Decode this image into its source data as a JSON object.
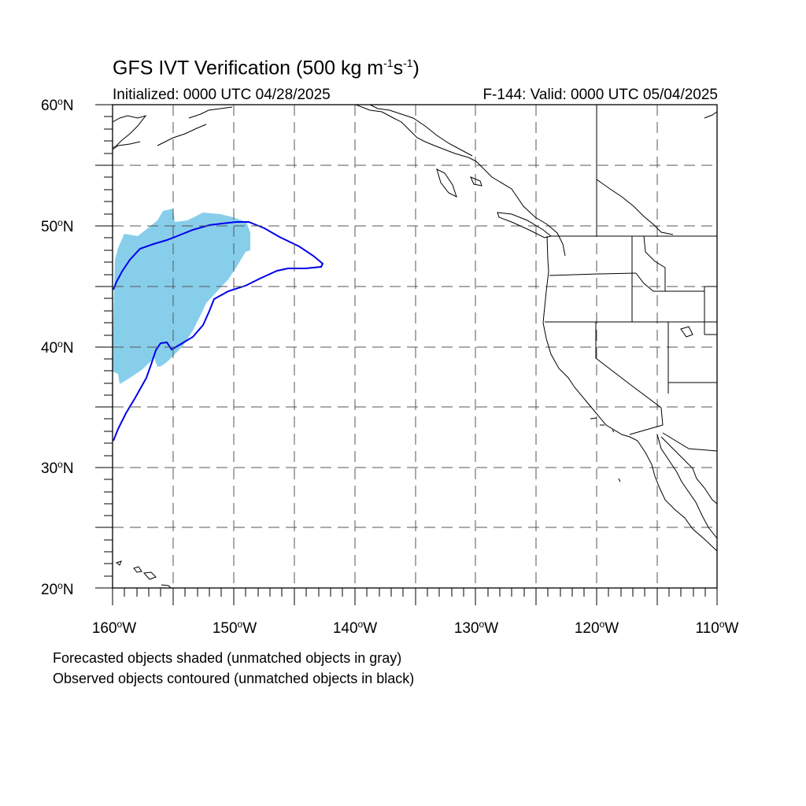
{
  "title": {
    "main": "GFS IVT Verification (500 kg m",
    "exp1": "-1",
    "mid": "s",
    "exp2": "-1",
    "end": ")"
  },
  "initialized": "Initialized: 0000 UTC 04/28/2025",
  "valid": "F-144: Valid: 0000 UTC 05/04/2025",
  "lat_labels": [
    {
      "num": "60",
      "hemi": "N"
    },
    {
      "num": "50",
      "hemi": "N"
    },
    {
      "num": "40",
      "hemi": "N"
    },
    {
      "num": "30",
      "hemi": "N"
    },
    {
      "num": "20",
      "hemi": "N"
    }
  ],
  "lon_labels": [
    {
      "num": "160",
      "hemi": "W"
    },
    {
      "num": "150",
      "hemi": "W"
    },
    {
      "num": "140",
      "hemi": "W"
    },
    {
      "num": "130",
      "hemi": "W"
    },
    {
      "num": "120",
      "hemi": "W"
    },
    {
      "num": "110",
      "hemi": "W"
    }
  ],
  "footnotes": [
    "Forecasted objects shaded (unmatched objects in gray)",
    "Observed objects contoured (unmatched objects in black)"
  ],
  "colors": {
    "forecast_shade": "#87CEEB",
    "observed_contour": "#0000EE",
    "coastline": "#000000",
    "grid": "#555555"
  },
  "map_extent": {
    "lon_min": -160,
    "lon_max": -110,
    "lat_min": 20,
    "lat_max": 60
  }
}
